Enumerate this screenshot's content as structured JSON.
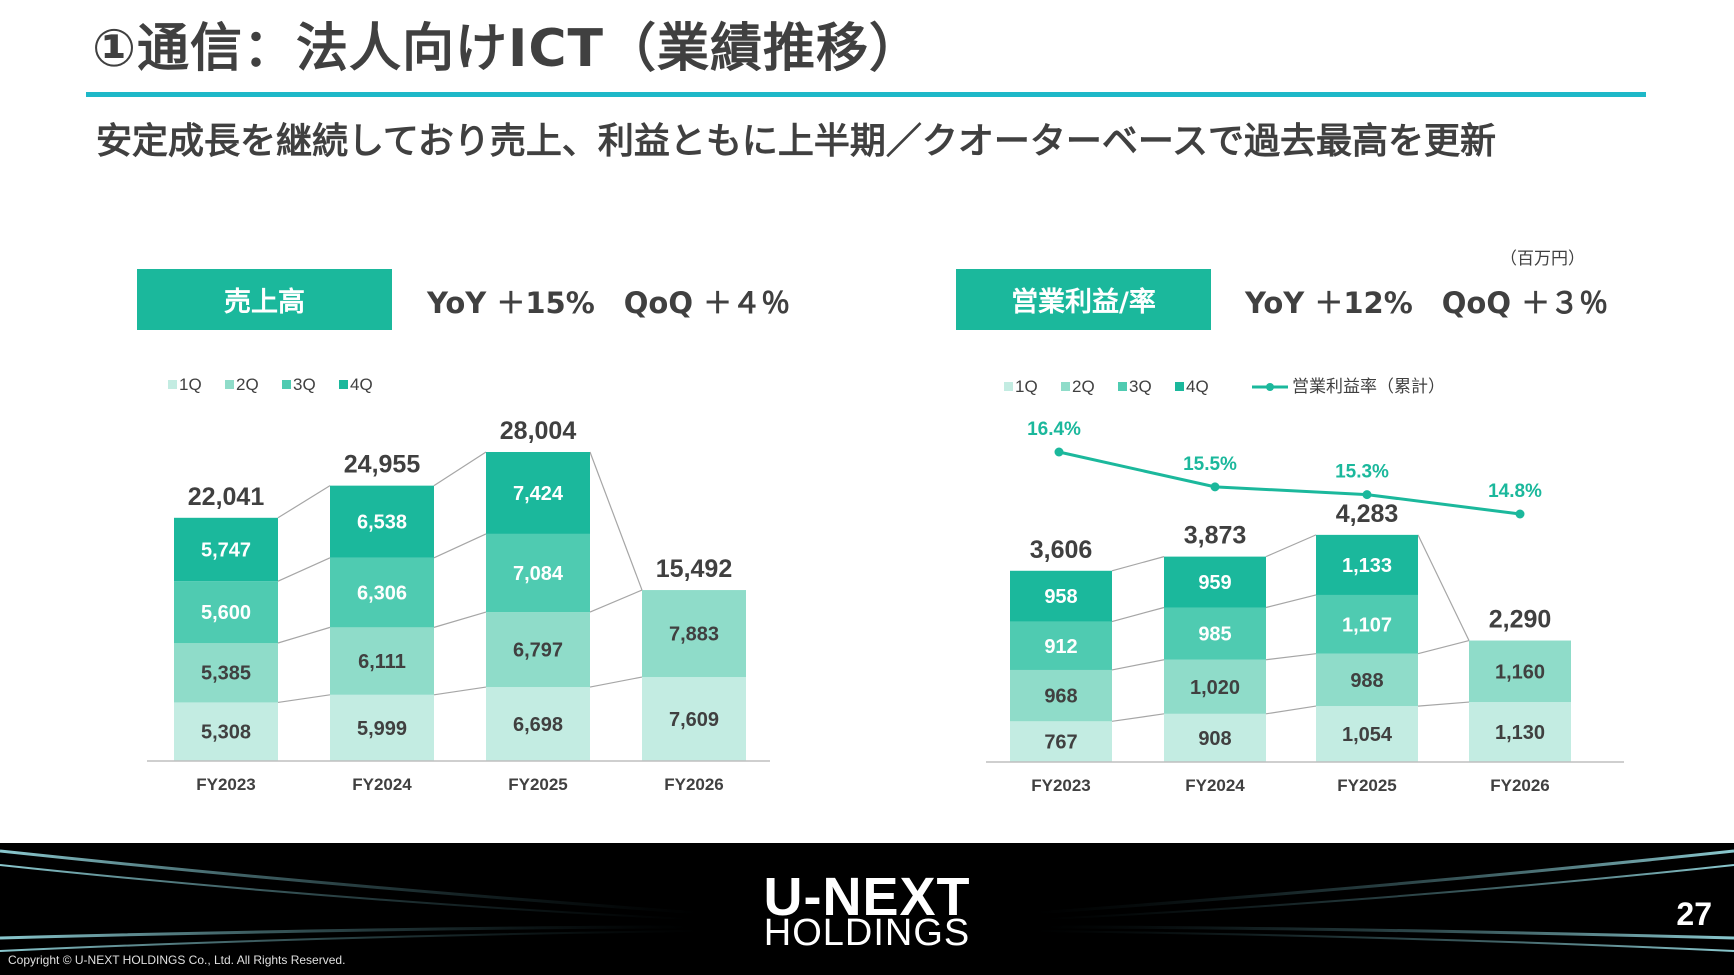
{
  "header": {
    "title": "①通信：法人向けICT（業績推移）",
    "subtitle": "安定成長を継続しており売上、利益ともに上半期／クオーターベースで過去最高を更新",
    "unit_note": "（百万円）"
  },
  "left_panel": {
    "badge": "売上高",
    "growth": "YoY ＋15%　QoQ ＋４％"
  },
  "right_panel": {
    "badge": "営業利益/率",
    "growth": "YoY ＋12%　QoQ ＋３％"
  },
  "colors": {
    "q1": "#c3ece2",
    "q2": "#8fdcc9",
    "q3": "#4fcbb1",
    "q4": "#1bb89c",
    "line": "#1bb89c",
    "title_rule": "#1eb8c8",
    "connector": "#a6a6a6"
  },
  "chart_data": [
    {
      "type": "bar",
      "stacked": true,
      "categories": [
        "FY2023",
        "FY2024",
        "FY2025",
        "FY2026"
      ],
      "series": [
        {
          "name": "1Q",
          "values": [
            5308,
            5999,
            6698,
            7609
          ]
        },
        {
          "name": "2Q",
          "values": [
            5385,
            6111,
            6797,
            7883
          ]
        },
        {
          "name": "3Q",
          "values": [
            5600,
            6306,
            7084,
            null
          ]
        },
        {
          "name": "4Q",
          "values": [
            5747,
            6538,
            7424,
            null
          ]
        }
      ],
      "segment_labels": [
        [
          "5,308",
          "5,999",
          "6,698",
          "7,609"
        ],
        [
          "5,385",
          "6,111",
          "6,797",
          "7,883"
        ],
        [
          "5,600",
          "6,306",
          "7,084",
          ""
        ],
        [
          "5,747",
          "6,538",
          "7,424",
          ""
        ]
      ],
      "totals": [
        22041,
        24955,
        28004,
        15492
      ],
      "total_labels": [
        "22,041",
        "24,955",
        "28,004",
        "15,492"
      ],
      "ylim": [
        0,
        29000
      ],
      "legend": "top-left",
      "grid": false
    },
    {
      "type": "bar",
      "stacked": true,
      "categories": [
        "FY2023",
        "FY2024",
        "FY2025",
        "FY2026"
      ],
      "series": [
        {
          "name": "1Q",
          "values": [
            767,
            908,
            1054,
            1130
          ]
        },
        {
          "name": "2Q",
          "values": [
            968,
            1020,
            988,
            1160
          ]
        },
        {
          "name": "3Q",
          "values": [
            912,
            985,
            1107,
            null
          ]
        },
        {
          "name": "4Q",
          "values": [
            958,
            959,
            1133,
            null
          ]
        }
      ],
      "segment_labels": [
        [
          "767",
          "908",
          "1,054",
          "1,130"
        ],
        [
          "968",
          "1,020",
          "988",
          "1,160"
        ],
        [
          "912",
          "985",
          "1,107",
          ""
        ],
        [
          "958",
          "959",
          "1,133",
          ""
        ]
      ],
      "totals": [
        3606,
        3873,
        4283,
        2290
      ],
      "total_labels": [
        "3,606",
        "3,873",
        "4,283",
        "2,290"
      ],
      "line_series": {
        "name": "営業利益率（累計）",
        "values": [
          16.4,
          15.5,
          15.3,
          14.8
        ],
        "labels": [
          "16.4%",
          "15.5%",
          "15.3%",
          "14.8%"
        ]
      },
      "ylim": [
        0,
        4600
      ],
      "line_ylim": [
        10,
        18
      ],
      "legend": "top-left",
      "grid": false
    }
  ],
  "footer": {
    "logo_top": "U-NEXT",
    "logo_bottom": "HOLDINGS",
    "page_number": "27",
    "copyright": "Copyright © U-NEXT HOLDINGS Co., Ltd. All Rights Reserved."
  }
}
